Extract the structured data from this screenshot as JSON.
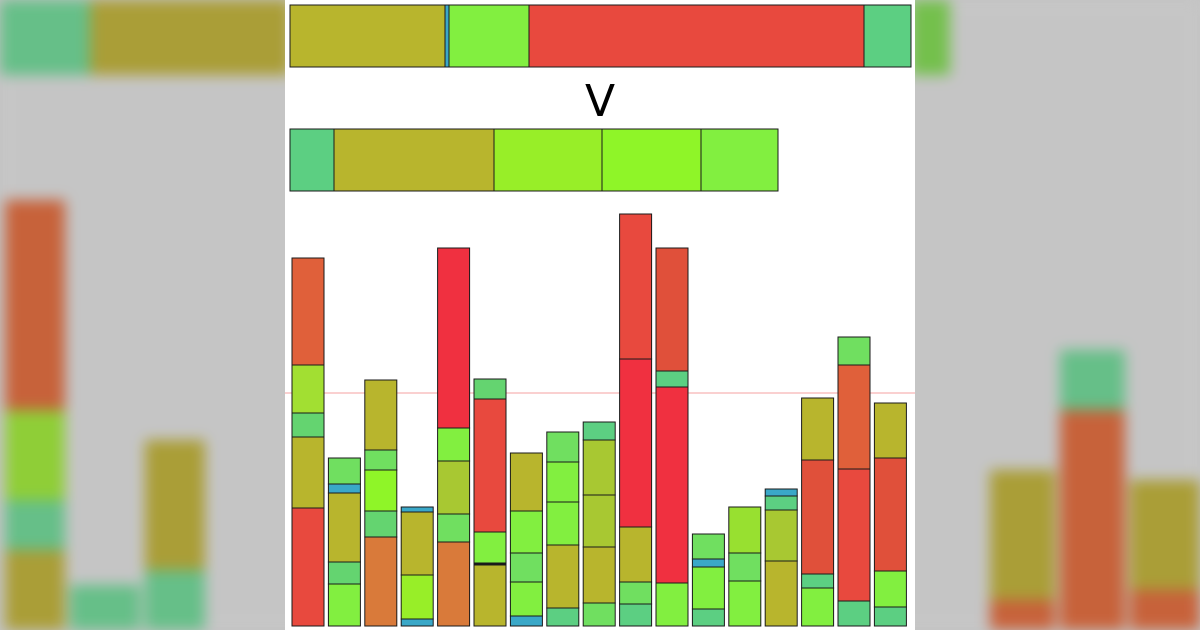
{
  "chart_data": {
    "type": "bar",
    "subtype": "stacked",
    "operator_label": "V",
    "reference_line": {
      "value": 233,
      "color": "#f4a0a0"
    },
    "top_strip": [
      {
        "value": 155,
        "color": "#b8b52d"
      },
      {
        "value": 4,
        "color": "#3aa8c8"
      },
      {
        "value": 80,
        "color": "#82ef40"
      },
      {
        "value": 335,
        "color": "#e8493e"
      },
      {
        "value": 47,
        "color": "#5ccf82"
      }
    ],
    "middle_strip": [
      {
        "value": 44,
        "color": "#5ccf82"
      },
      {
        "value": 160,
        "color": "#b8b52d"
      },
      {
        "value": 108,
        "color": "#98ee28"
      },
      {
        "value": 99,
        "color": "#8ff528"
      },
      {
        "value": 77,
        "color": "#82ef40"
      }
    ],
    "bars": [
      {
        "segments": [
          {
            "value": 118,
            "color": "#e8493e"
          },
          {
            "value": 71,
            "color": "#b8b52d"
          },
          {
            "value": 24,
            "color": "#64d470"
          },
          {
            "value": 48,
            "color": "#a2df32"
          },
          {
            "value": 107,
            "color": "#e0603a"
          }
        ]
      },
      {
        "segments": [
          {
            "value": 42,
            "color": "#82ef40"
          },
          {
            "value": 22,
            "color": "#64d470"
          },
          {
            "value": 69,
            "color": "#b8b52d"
          },
          {
            "value": 9,
            "color": "#3aa8c8"
          },
          {
            "value": 26,
            "color": "#70df60"
          }
        ]
      },
      {
        "segments": [
          {
            "value": 89,
            "color": "#d97a3a"
          },
          {
            "value": 26,
            "color": "#64d470"
          },
          {
            "value": 41,
            "color": "#8ff528"
          },
          {
            "value": 20,
            "color": "#70df60"
          },
          {
            "value": 70,
            "color": "#b8b52d"
          }
        ]
      },
      {
        "segments": [
          {
            "value": 7,
            "color": "#3aa8c8"
          },
          {
            "value": 44,
            "color": "#98ee28"
          },
          {
            "value": 63,
            "color": "#b8b52d"
          },
          {
            "value": 5,
            "color": "#3aa8c8"
          }
        ]
      },
      {
        "segments": [
          {
            "value": 84,
            "color": "#d97a3a"
          },
          {
            "value": 28,
            "color": "#70df60"
          },
          {
            "value": 53,
            "color": "#a8c832"
          },
          {
            "value": 33,
            "color": "#82ef40"
          },
          {
            "value": 180,
            "color": "#f03040"
          }
        ]
      },
      {
        "segments": [
          {
            "value": 61,
            "color": "#b8b52d"
          },
          {
            "value": 2,
            "color": "#1a1a1a"
          },
          {
            "value": 31,
            "color": "#82ef40"
          },
          {
            "value": 133,
            "color": "#e8493e"
          },
          {
            "value": 20,
            "color": "#64d470"
          }
        ]
      },
      {
        "segments": [
          {
            "value": 10,
            "color": "#3aa8c8"
          },
          {
            "value": 34,
            "color": "#82ef40"
          },
          {
            "value": 29,
            "color": "#70df60"
          },
          {
            "value": 42,
            "color": "#82ef40"
          },
          {
            "value": 58,
            "color": "#b8b52d"
          }
        ]
      },
      {
        "segments": [
          {
            "value": 18,
            "color": "#5ccf82"
          },
          {
            "value": 63,
            "color": "#b8b52d"
          },
          {
            "value": 43,
            "color": "#82ef40"
          },
          {
            "value": 40,
            "color": "#82ef40"
          },
          {
            "value": 30,
            "color": "#70df60"
          }
        ]
      },
      {
        "segments": [
          {
            "value": 23,
            "color": "#70df60"
          },
          {
            "value": 56,
            "color": "#b8b52d"
          },
          {
            "value": 52,
            "color": "#a8c832"
          },
          {
            "value": 55,
            "color": "#a8c832"
          },
          {
            "value": 18,
            "color": "#5ccf82"
          }
        ]
      },
      {
        "segments": [
          {
            "value": 22,
            "color": "#5ccf82"
          },
          {
            "value": 22,
            "color": "#70df60"
          },
          {
            "value": 55,
            "color": "#b8b52d"
          },
          {
            "value": 168,
            "color": "#f03040"
          },
          {
            "value": 145,
            "color": "#e8493e"
          }
        ]
      },
      {
        "segments": [
          {
            "value": 43,
            "color": "#82ef40"
          },
          {
            "value": 196,
            "color": "#f03040"
          },
          {
            "value": 16,
            "color": "#5ccf82"
          },
          {
            "value": 123,
            "color": "#e0503a"
          }
        ]
      },
      {
        "segments": [
          {
            "value": 17,
            "color": "#5ccf82"
          },
          {
            "value": 42,
            "color": "#82ef40"
          },
          {
            "value": 8,
            "color": "#3aa8c8"
          },
          {
            "value": 25,
            "color": "#70df60"
          }
        ]
      },
      {
        "segments": [
          {
            "value": 45,
            "color": "#82ef40"
          },
          {
            "value": 28,
            "color": "#70df60"
          },
          {
            "value": 46,
            "color": "#98e030"
          }
        ]
      },
      {
        "segments": [
          {
            "value": 65,
            "color": "#b8b52d"
          },
          {
            "value": 51,
            "color": "#a8c832"
          },
          {
            "value": 14,
            "color": "#5ccf82"
          },
          {
            "value": 7,
            "color": "#3aa8c8"
          }
        ]
      },
      {
        "segments": [
          {
            "value": 38,
            "color": "#82ef40"
          },
          {
            "value": 14,
            "color": "#5ccf82"
          },
          {
            "value": 114,
            "color": "#e0503a"
          },
          {
            "value": 62,
            "color": "#b8b52d"
          }
        ]
      },
      {
        "segments": [
          {
            "value": 25,
            "color": "#5ccf82"
          },
          {
            "value": 132,
            "color": "#e8493e"
          },
          {
            "value": 104,
            "color": "#e0603a"
          },
          {
            "value": 28,
            "color": "#70df60"
          }
        ]
      },
      {
        "segments": [
          {
            "value": 19,
            "color": "#5ccf82"
          },
          {
            "value": 36,
            "color": "#82ef40"
          },
          {
            "value": 113,
            "color": "#e0503a"
          },
          {
            "value": 55,
            "color": "#b8b52d"
          }
        ]
      }
    ]
  }
}
